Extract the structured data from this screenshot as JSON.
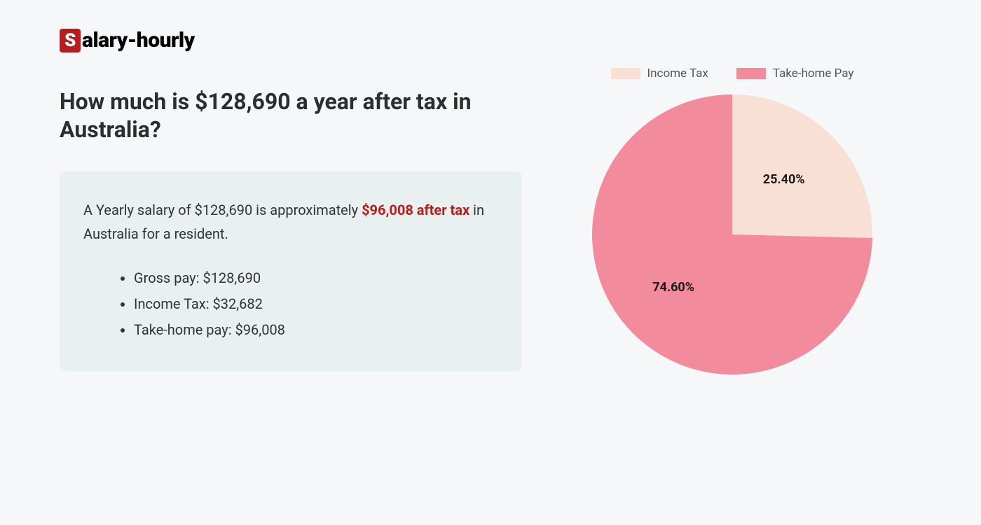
{
  "logo": {
    "badge_letter": "S",
    "rest": "alary-hourly",
    "badge_bg": "#b91c1c",
    "badge_fg": "#ffffff",
    "text_color": "#000000"
  },
  "heading": "How much is $128,690 a year after tax in Australia?",
  "info": {
    "lead_pre": "A Yearly salary of $128,690 is approximately ",
    "lead_highlight": "$96,008 after tax",
    "lead_post": " in Australia for a resident.",
    "bullets": [
      "Gross pay: $128,690",
      "Income Tax: $32,682",
      "Take-home pay: $96,008"
    ],
    "box_bg": "#e8f0f0",
    "text_color": "#333333",
    "highlight_color": "#b91c1c"
  },
  "chart": {
    "type": "pie",
    "slices": [
      {
        "label": "Income Tax",
        "value": 25.4,
        "label_text": "25.40%",
        "color": "#f8e1d4"
      },
      {
        "label": "Take-home Pay",
        "value": 74.6,
        "label_text": "74.60%",
        "color": "#f28b9b"
      }
    ],
    "radius": 200,
    "start_angle_deg": 0,
    "background": "#f5f7f9",
    "label_fontsize": 18,
    "label_fontweight": 700,
    "label_color": "#1a1a1a",
    "legend_fontsize": 17,
    "legend_color": "#555555",
    "legend_swatch_w": 42,
    "legend_swatch_h": 16
  }
}
